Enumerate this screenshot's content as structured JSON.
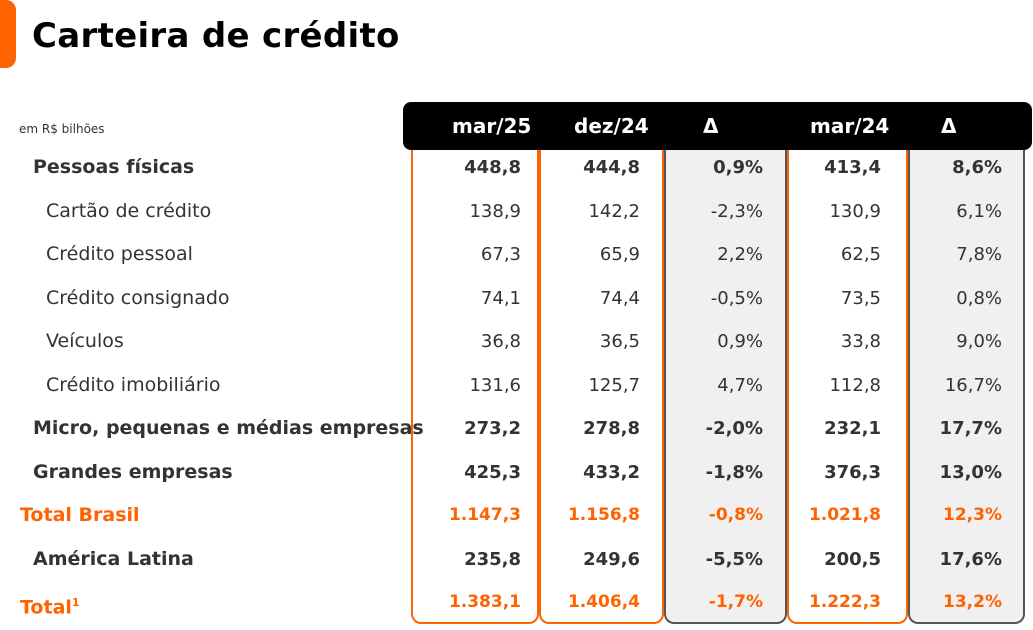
{
  "title": "Carteira de crédito",
  "unit_label": "em R$ bilhões",
  "columns": [
    "mar/25",
    "dez/24",
    "Δ",
    "mar/24",
    "Δ"
  ],
  "rows": [
    {
      "label": "Pessoas físicas",
      "style": "main",
      "values": [
        "448,8",
        "444,8",
        "0,9%",
        "413,4",
        "8,6%"
      ]
    },
    {
      "label": "Cartão de crédito",
      "style": "sub",
      "values": [
        "138,9",
        "142,2",
        "-2,3%",
        "130,9",
        "6,1%"
      ]
    },
    {
      "label": "Crédito pessoal",
      "style": "sub",
      "values": [
        "67,3",
        "65,9",
        "2,2%",
        "62,5",
        "7,8%"
      ]
    },
    {
      "label": "Crédito consignado",
      "style": "sub",
      "values": [
        "74,1",
        "74,4",
        "-0,5%",
        "73,5",
        "0,8%"
      ]
    },
    {
      "label": "Veículos",
      "style": "sub",
      "values": [
        "36,8",
        "36,5",
        "0,9%",
        "33,8",
        "9,0%"
      ]
    },
    {
      "label": "Crédito imobiliário",
      "style": "sub",
      "values": [
        "131,6",
        "125,7",
        "4,7%",
        "112,8",
        "16,7%"
      ]
    },
    {
      "label": "Micro, pequenas e médias empresas",
      "style": "main",
      "values": [
        "273,2",
        "278,8",
        "-2,0%",
        "232,1",
        "17,7%"
      ]
    },
    {
      "label": "Grandes empresas",
      "style": "main",
      "values": [
        "425,3",
        "433,2",
        "-1,8%",
        "376,3",
        "13,0%"
      ]
    },
    {
      "label": "Total Brasil",
      "style": "total",
      "values": [
        "1.147,3",
        "1.156,8",
        "-0,8%",
        "1.021,8",
        "12,3%"
      ]
    },
    {
      "label": "América Latina",
      "style": "main",
      "values": [
        "235,8",
        "249,6",
        "-5,5%",
        "200,5",
        "17,6%"
      ]
    },
    {
      "label": "Total",
      "sup": "1",
      "style": "total",
      "values": [
        "1.383,1",
        "1.406,4",
        "-1,7%",
        "1.222,3",
        "13,2%"
      ]
    }
  ]
}
